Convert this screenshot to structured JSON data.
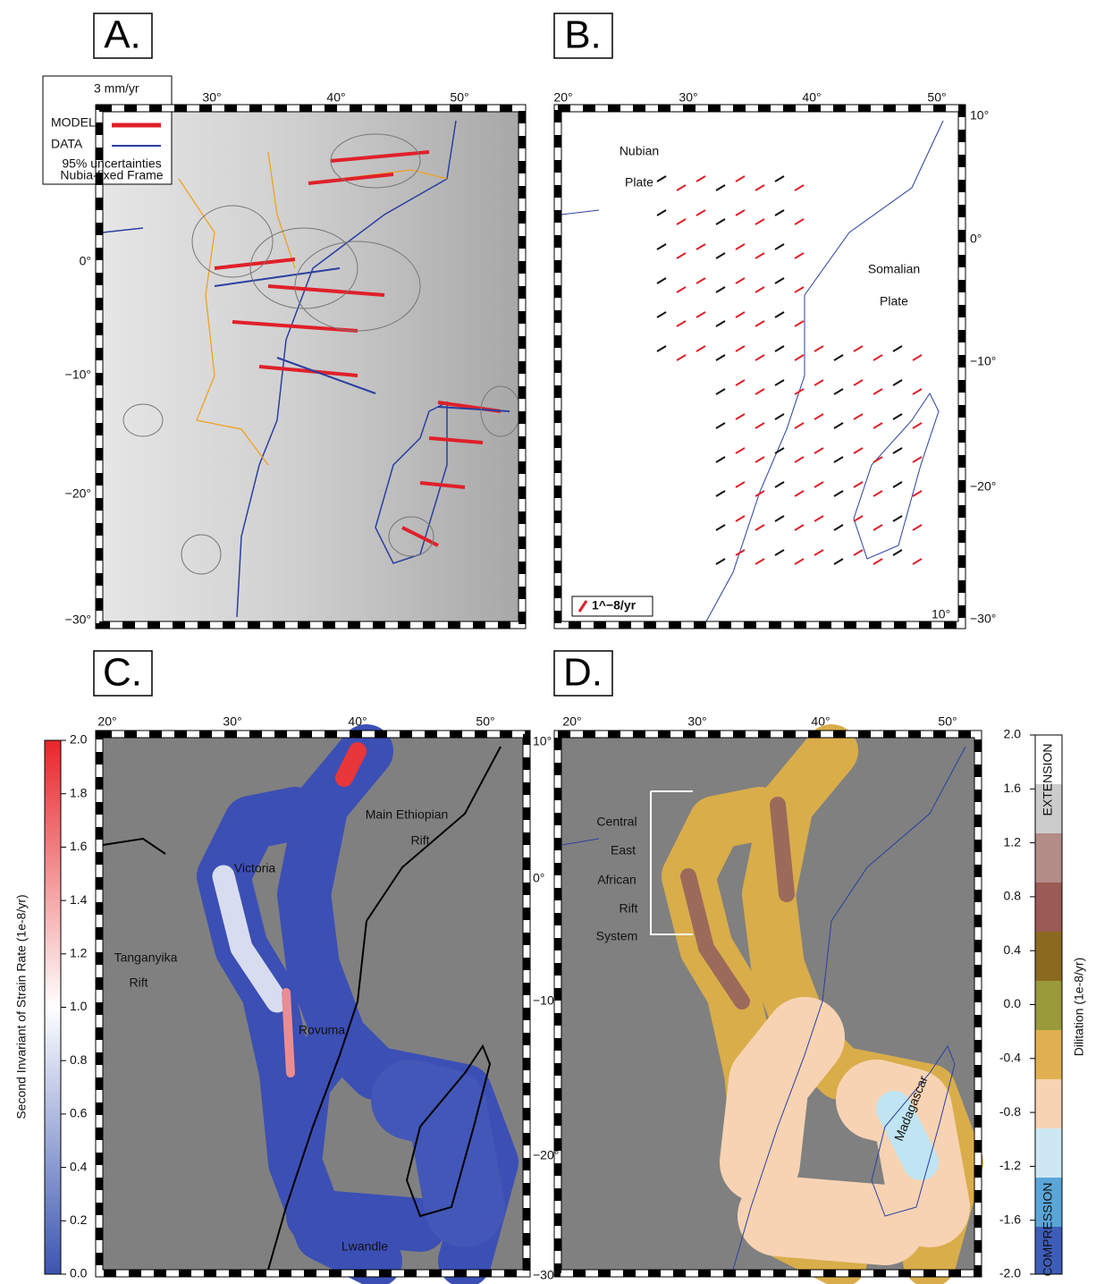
{
  "panels": [
    {
      "label": "A.",
      "lon_labels": [
        "30°",
        "40°",
        "50°"
      ],
      "lat_labels": [
        "0°",
        "−10°",
        "−20°",
        "−30°"
      ],
      "legend": {
        "scale": "3 mm/yr",
        "model": "MODEL",
        "data": "DATA",
        "note1": "95% uncertainties",
        "note2": "Nubia-fixed Frame"
      }
    },
    {
      "label": "B.",
      "lon_labels": [
        "20°",
        "30°",
        "40°",
        "50°"
      ],
      "lat_labels": [
        "10°",
        "0°",
        "−10°",
        "−20°",
        "−30°"
      ],
      "annotations": [
        "Nubian",
        "Plate",
        "Somalian",
        "Plate"
      ],
      "legend": "1^−8/yr",
      "corner_label": "10°"
    },
    {
      "label": "C.",
      "lon_labels": [
        "20°",
        "30°",
        "40°",
        "50°"
      ],
      "lat_labels": [
        "10°",
        "0°",
        "−10°",
        "−20°",
        "−30°"
      ],
      "annotations": [
        "Main Ethiopian",
        "Rift",
        "Victoria",
        "Tanganyika",
        "Rift",
        "Rovuma",
        "Lwandle"
      ],
      "colorbar": {
        "title": "Second Invariant of Strain Rate (1e-8/yr)",
        "ticks": [
          "2.0",
          "1.8",
          "1.6",
          "1.4",
          "1.2",
          "1.0",
          "0.8",
          "0.6",
          "0.4",
          "0.2",
          "0.0"
        ]
      }
    },
    {
      "label": "D.",
      "lon_labels": [
        "20°",
        "30°",
        "40°",
        "50°"
      ],
      "annotations": [
        "Central",
        "East",
        "African",
        "Rift",
        "System",
        "Madagascar"
      ],
      "colorbar": {
        "title": "Dilitation (1e-8/yr)",
        "ticks": [
          "2.0",
          "1.6",
          "1.2",
          "0.8",
          "0.4",
          "0.0",
          "-0.4",
          "-0.8",
          "-1.2",
          "-1.6",
          "-2.0"
        ],
        "top_label": "EXTENSION",
        "bottom_label": "COMPRESSION"
      }
    }
  ]
}
